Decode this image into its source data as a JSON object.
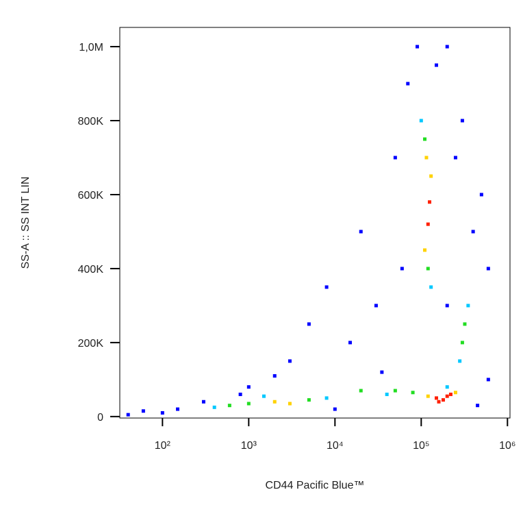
{
  "chart_data": {
    "type": "scatter",
    "xlabel": "CD44 Pacific Blue™",
    "ylabel": "SS-A :: SS INT LIN",
    "xscale": "log",
    "xlim": [
      32,
      1070000
    ],
    "ylim": [
      -4000,
      1052000
    ],
    "xticks": [
      {
        "value": 100,
        "label": "10²"
      },
      {
        "value": 1000,
        "label": "10³"
      },
      {
        "value": 10000,
        "label": "10⁴"
      },
      {
        "value": 100000,
        "label": "10⁵"
      },
      {
        "value": 1000000,
        "label": "10⁶"
      }
    ],
    "yticks": [
      0,
      {
        "value": 200000,
        "label": "200K"
      },
      {
        "value": 400000,
        "label": "400K"
      },
      {
        "value": 600000,
        "label": "600K"
      },
      {
        "value": 800000,
        "label": "800K"
      },
      {
        "value": 1000000,
        "label": "1,0M"
      }
    ],
    "series": [
      {
        "color": "#0000ff",
        "x": [
          40,
          60,
          150,
          300,
          1000,
          3000,
          5000,
          8000,
          20000,
          30000,
          50000,
          70000,
          150000,
          300000,
          500000,
          600000,
          400000,
          15000,
          2000,
          90000,
          200000,
          35000,
          60000,
          200000,
          600000,
          800,
          10000,
          100,
          450000,
          250000
        ],
        "y": [
          5000,
          15000,
          20000,
          40000,
          80000,
          150000,
          250000,
          350000,
          500000,
          300000,
          700000,
          900000,
          950000,
          800000,
          600000,
          400000,
          500000,
          200000,
          110000,
          1000000,
          1000000,
          120000,
          400000,
          300000,
          100000,
          60000,
          20000,
          10000,
          30000,
          700000
        ]
      },
      {
        "color": "#00c8ff",
        "x": [
          400,
          8000,
          100000,
          280000,
          350000,
          130000,
          40000,
          1500,
          200000
        ],
        "y": [
          25000,
          50000,
          800000,
          150000,
          300000,
          350000,
          60000,
          55000,
          80000
        ]
      },
      {
        "color": "#22dd22",
        "x": [
          1000,
          5000,
          20000,
          50000,
          300000,
          320000,
          110000,
          120000,
          600,
          80000
        ],
        "y": [
          35000,
          45000,
          70000,
          70000,
          200000,
          250000,
          750000,
          400000,
          30000,
          65000
        ]
      },
      {
        "color": "#ffd200",
        "x": [
          250000,
          120000,
          110000,
          130000,
          115000,
          3000,
          2000
        ],
        "y": [
          65000,
          55000,
          450000,
          650000,
          700000,
          35000,
          40000
        ]
      },
      {
        "color": "#ff2000",
        "x": [
          150000,
          180000,
          200000,
          160000,
          220000,
          120000,
          125000
        ],
        "y": [
          50000,
          45000,
          55000,
          40000,
          60000,
          520000,
          580000
        ]
      }
    ]
  }
}
